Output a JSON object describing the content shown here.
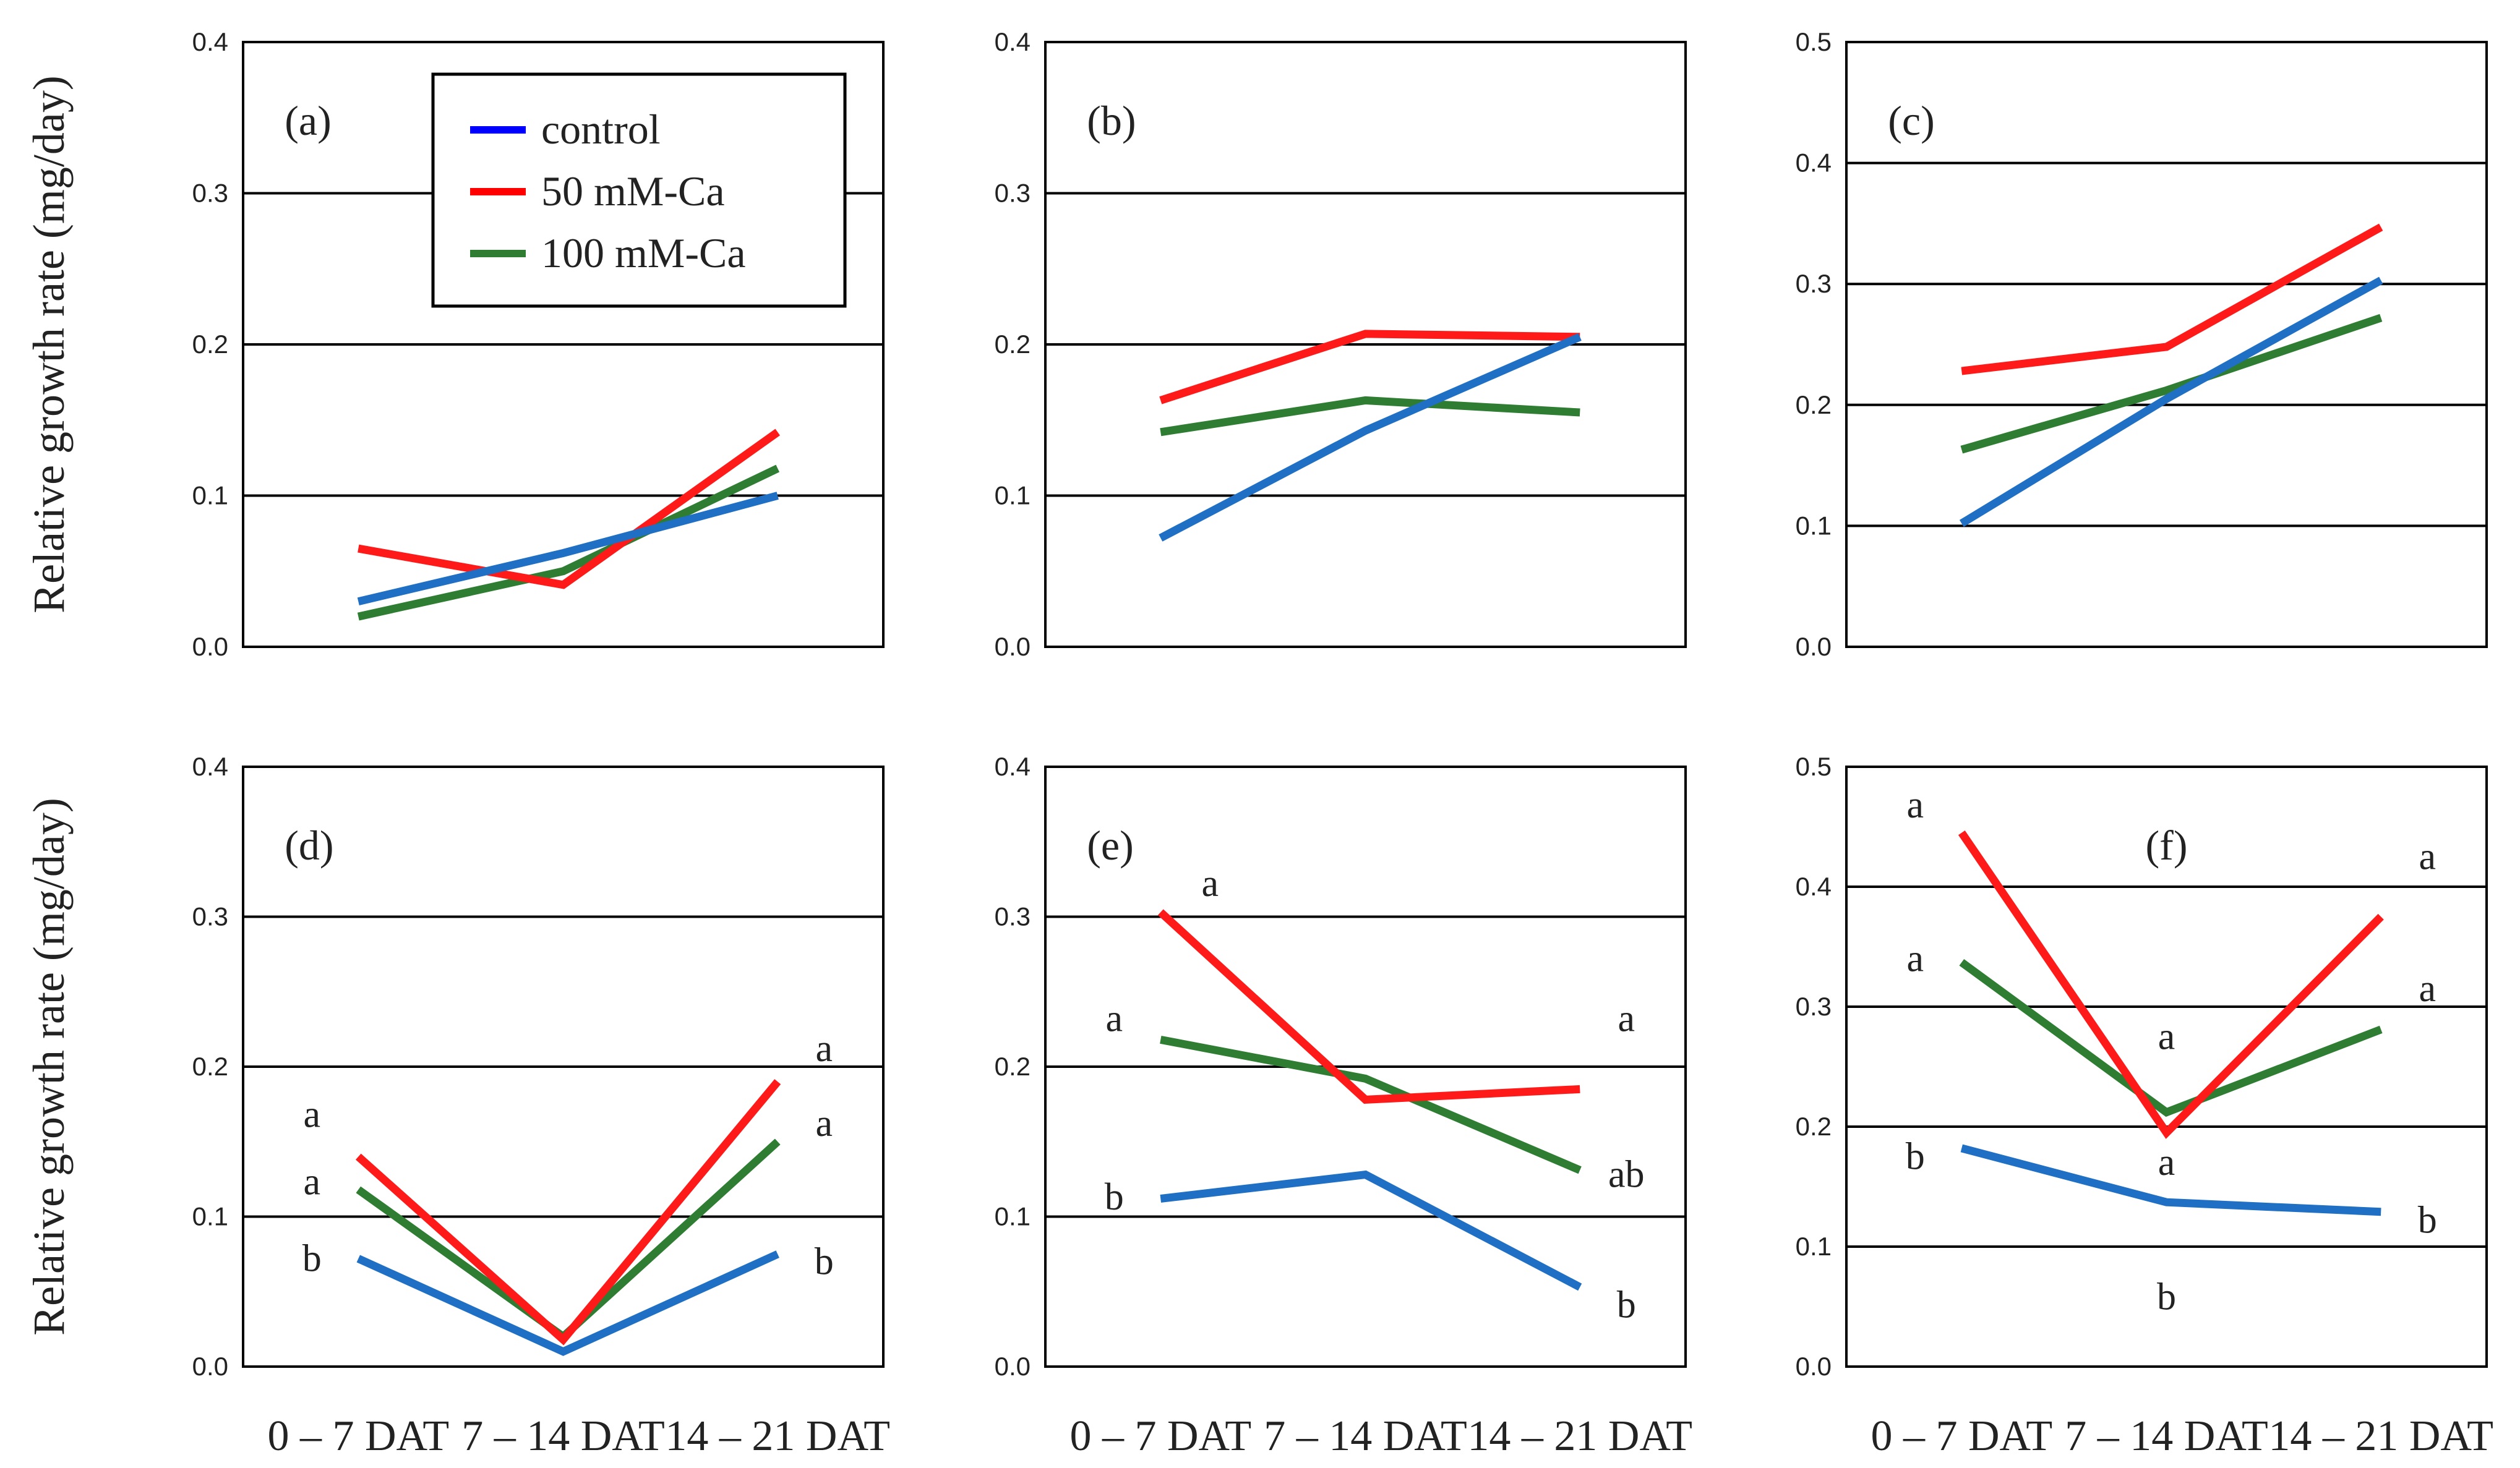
{
  "chart_data": {
    "type": "line",
    "ylabel": "Relative growth rate (mg/day)",
    "categories": [
      "0 – 7 DAT",
      "7 – 14 DAT",
      "14 – 21 DAT"
    ],
    "legend": [
      {
        "name": "control",
        "color": "#0000ff"
      },
      {
        "name": "50 mM-Ca",
        "color": "#ff0000"
      },
      {
        "name": "100 mM-Ca",
        "color": "#2e7d32"
      }
    ],
    "series_colors": {
      "control": "#1f6fc5",
      "50 mM-Ca": "#ff1a1a",
      "100 mM-Ca": "#2e7d32"
    },
    "panels": [
      {
        "label": "(a)",
        "ylim": [
          0,
          0.4
        ],
        "yticks": [
          "0.0",
          "0.1",
          "0.2",
          "0.3",
          "0.4"
        ],
        "series": [
          {
            "name": "control",
            "values": [
              0.03,
              0.062,
              0.1
            ]
          },
          {
            "name": "50 mM-Ca",
            "values": [
              0.065,
              0.041,
              0.142
            ]
          },
          {
            "name": "100 mM-Ca",
            "values": [
              0.02,
              0.05,
              0.118
            ]
          }
        ],
        "letters": []
      },
      {
        "label": "(b)",
        "ylim": [
          0,
          0.4
        ],
        "yticks": [
          "0.0",
          "0.1",
          "0.2",
          "0.3",
          "0.4"
        ],
        "series": [
          {
            "name": "control",
            "values": [
              0.072,
              0.143,
              0.205
            ]
          },
          {
            "name": "50 mM-Ca",
            "values": [
              0.163,
              0.207,
              0.205
            ]
          },
          {
            "name": "100 mM-Ca",
            "values": [
              0.142,
              0.163,
              0.155
            ]
          }
        ],
        "letters": []
      },
      {
        "label": "(c)",
        "ylim": [
          0,
          0.5
        ],
        "yticks": [
          "0.0",
          "0.1",
          "0.2",
          "0.3",
          "0.4",
          "0.5"
        ],
        "series": [
          {
            "name": "control",
            "values": [
              0.102,
              0.205,
              0.303
            ]
          },
          {
            "name": "50 mM-Ca",
            "values": [
              0.228,
              0.248,
              0.347
            ]
          },
          {
            "name": "100 mM-Ca",
            "values": [
              0.163,
              0.212,
              0.272
            ]
          }
        ],
        "letters": []
      },
      {
        "label": "(d)",
        "ylim": [
          0,
          0.4
        ],
        "yticks": [
          "0.0",
          "0.1",
          "0.2",
          "0.3",
          "0.4"
        ],
        "series": [
          {
            "name": "control",
            "values": [
              0.072,
              0.01,
              0.075
            ]
          },
          {
            "name": "50 mM-Ca",
            "values": [
              0.14,
              0.018,
              0.19
            ]
          },
          {
            "name": "100 mM-Ca",
            "values": [
              0.118,
              0.02,
              0.15
            ]
          }
        ],
        "letters": [
          {
            "text": "a",
            "cat": 0,
            "y": 0.168,
            "side": "left"
          },
          {
            "text": "a",
            "cat": 0,
            "y": 0.123,
            "side": "left"
          },
          {
            "text": "b",
            "cat": 0,
            "y": 0.072,
            "side": "left"
          },
          {
            "text": "a",
            "cat": 2,
            "y": 0.212,
            "side": "right"
          },
          {
            "text": "a",
            "cat": 2,
            "y": 0.162,
            "side": "right"
          },
          {
            "text": "b",
            "cat": 2,
            "y": 0.07,
            "side": "right"
          }
        ]
      },
      {
        "label": "(e)",
        "ylim": [
          0,
          0.4
        ],
        "yticks": [
          "0.0",
          "0.1",
          "0.2",
          "0.3",
          "0.4"
        ],
        "series": [
          {
            "name": "control",
            "values": [
              0.112,
              0.128,
              0.053
            ]
          },
          {
            "name": "50 mM-Ca",
            "values": [
              0.303,
              0.178,
              0.185
            ]
          },
          {
            "name": "100 mM-Ca",
            "values": [
              0.218,
              0.192,
              0.131
            ]
          }
        ],
        "letters": [
          {
            "text": "a",
            "cat": 0,
            "y": 0.322,
            "side": "right-near"
          },
          {
            "text": "a",
            "cat": 0,
            "y": 0.232,
            "side": "left"
          },
          {
            "text": "b",
            "cat": 0,
            "y": 0.113,
            "side": "left"
          },
          {
            "text": "a",
            "cat": 2,
            "y": 0.232,
            "side": "right"
          },
          {
            "text": "ab",
            "cat": 2,
            "y": 0.128,
            "side": "right"
          },
          {
            "text": "b",
            "cat": 2,
            "y": 0.041,
            "side": "right"
          }
        ]
      },
      {
        "label": "(f)",
        "ylim": [
          0,
          0.5
        ],
        "yticks": [
          "0.0",
          "0.1",
          "0.2",
          "0.3",
          "0.4",
          "0.5"
        ],
        "series": [
          {
            "name": "control",
            "values": [
              0.182,
              0.137,
              0.129
            ]
          },
          {
            "name": "50 mM-Ca",
            "values": [
              0.445,
              0.195,
              0.375
            ]
          },
          {
            "name": "100 mM-Ca",
            "values": [
              0.337,
              0.212,
              0.281
            ]
          }
        ],
        "letters": [
          {
            "text": "a",
            "cat": 0,
            "y": 0.468,
            "side": "left"
          },
          {
            "text": "a",
            "cat": 0,
            "y": 0.34,
            "side": "left"
          },
          {
            "text": "b",
            "cat": 0,
            "y": 0.175,
            "side": "left"
          },
          {
            "text": "a",
            "cat": 1,
            "y": 0.275,
            "side": "center"
          },
          {
            "text": "a",
            "cat": 1,
            "y": 0.17,
            "side": "center"
          },
          {
            "text": "b",
            "cat": 1,
            "y": 0.058,
            "side": "center"
          },
          {
            "text": "a",
            "cat": 2,
            "y": 0.425,
            "side": "right"
          },
          {
            "text": "a",
            "cat": 2,
            "y": 0.315,
            "side": "right"
          },
          {
            "text": "b",
            "cat": 2,
            "y": 0.122,
            "side": "right"
          }
        ]
      }
    ]
  }
}
